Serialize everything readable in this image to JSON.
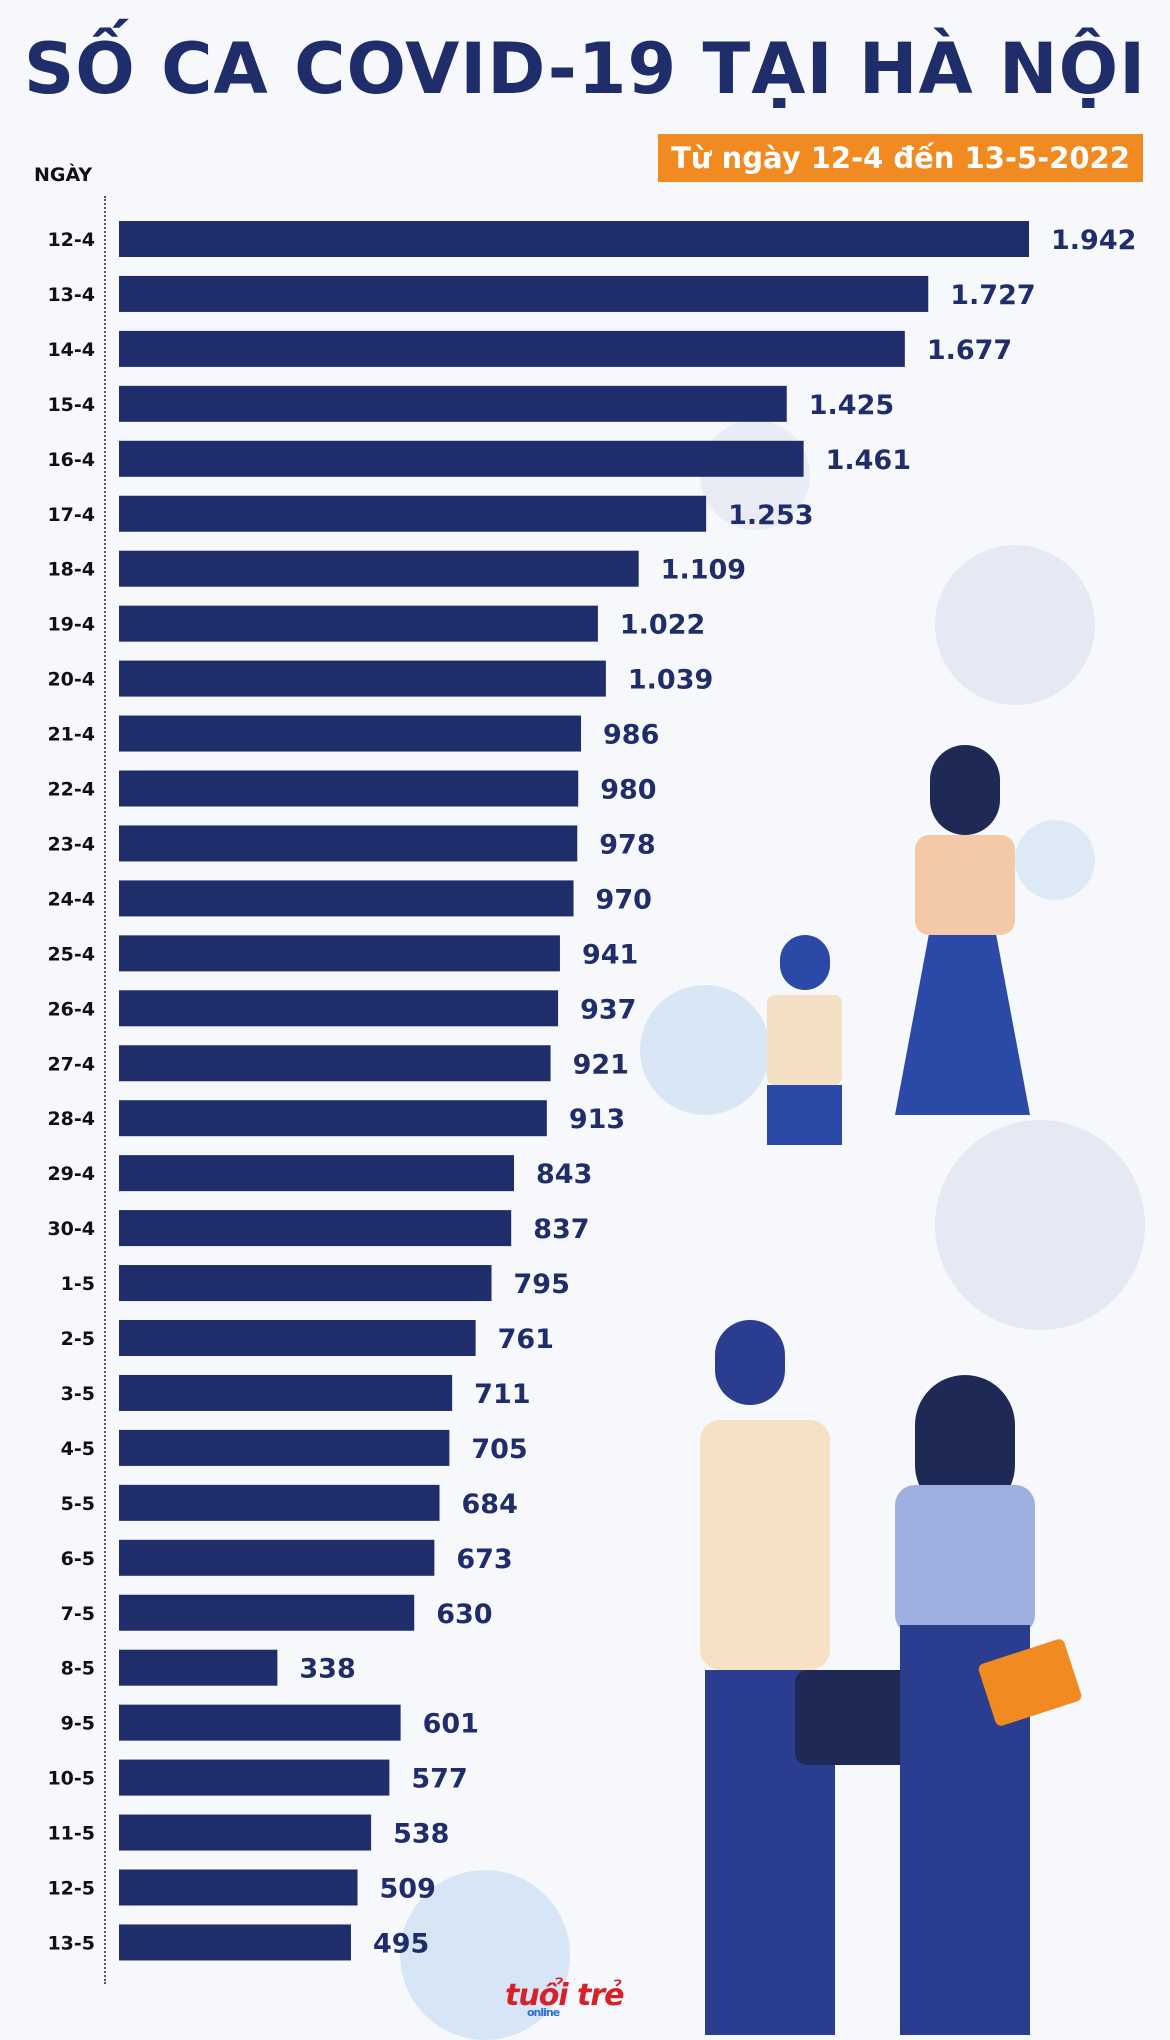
{
  "title": "SỐ CA COVID-19 TẠI HÀ NỘI",
  "subtitle": "Từ ngày 12-4 đến 13-5-2022",
  "logo": "tuổi trẻ online",
  "chart_data": {
    "type": "bar",
    "orientation": "horizontal",
    "title": "SỐ CA COVID-19 TẠI HÀ NỘI",
    "subtitle": "Từ ngày 12-4 đến 13-5-2022",
    "ylabel": "NGÀY",
    "grid": false,
    "bar_color": "#1f2d6b",
    "label_color": "#1f2d6b",
    "accent": "#f28a22",
    "categories": [
      "12-4",
      "13-4",
      "14-4",
      "15-4",
      "16-4",
      "17-4",
      "18-4",
      "19-4",
      "20-4",
      "21-4",
      "22-4",
      "23-4",
      "24-4",
      "25-4",
      "26-4",
      "27-4",
      "28-4",
      "29-4",
      "30-4",
      "1-5",
      "2-5",
      "3-5",
      "4-5",
      "5-5",
      "6-5",
      "7-5",
      "8-5",
      "9-5",
      "10-5",
      "11-5",
      "12-5",
      "13-5"
    ],
    "values": [
      1942,
      1727,
      1677,
      1425,
      1461,
      1253,
      1109,
      1022,
      1039,
      986,
      980,
      978,
      970,
      941,
      937,
      921,
      913,
      843,
      837,
      795,
      761,
      711,
      705,
      684,
      673,
      630,
      338,
      601,
      577,
      538,
      509,
      495
    ],
    "value_labels": [
      "1.942",
      "1.727",
      "1.677",
      "1.425",
      "1.461",
      "1.253",
      "1.109",
      "1.022",
      "1.039",
      "986",
      "980",
      "978",
      "970",
      "941",
      "937",
      "921",
      "913",
      "843",
      "837",
      "795",
      "761",
      "711",
      "705",
      "684",
      "673",
      "630",
      "338",
      "601",
      "577",
      "538",
      "509",
      "495"
    ]
  }
}
